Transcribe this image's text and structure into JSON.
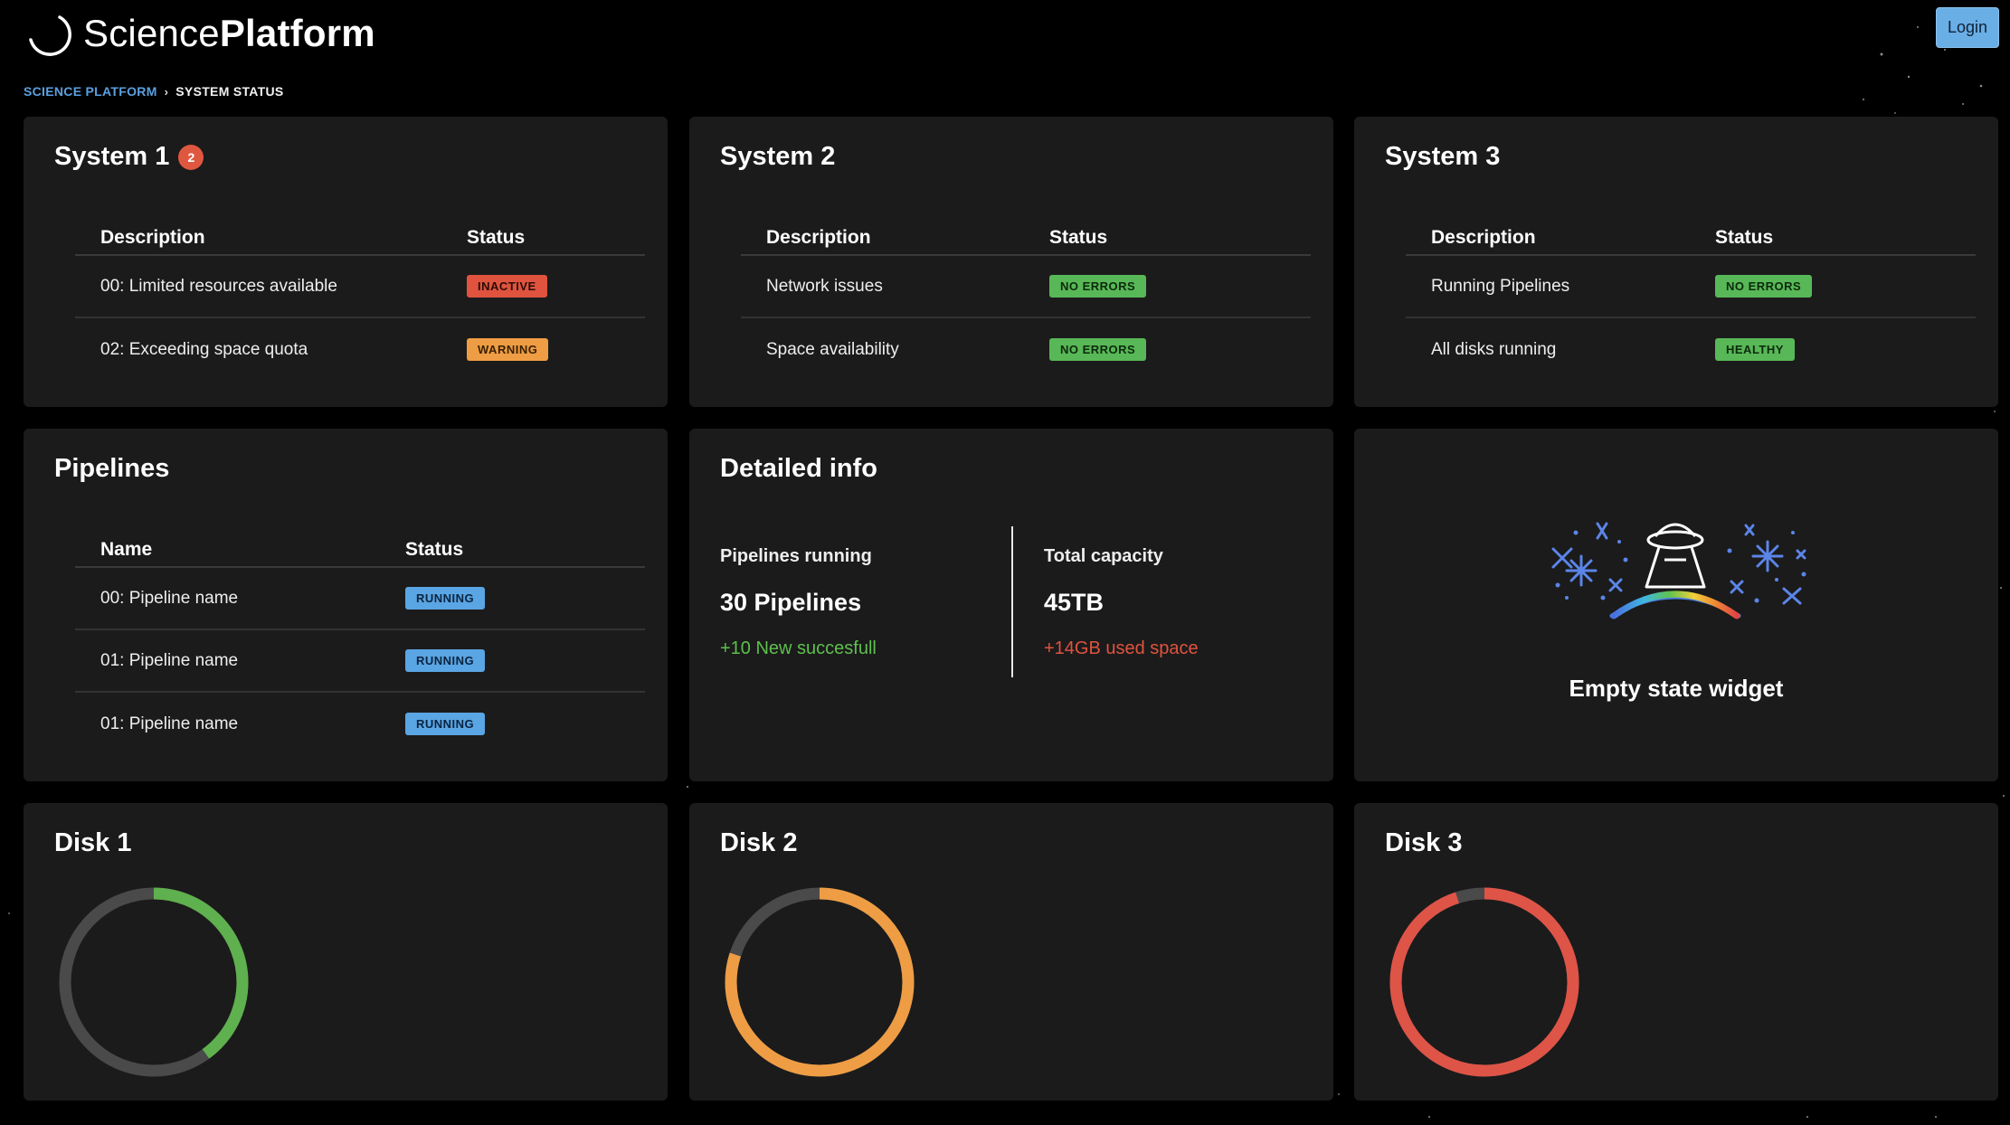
{
  "header": {
    "brand_light": "Science",
    "brand_bold": "Platform",
    "login_label": "Login"
  },
  "breadcrumb": {
    "root": "SCIENCE PLATFORM",
    "separator": "›",
    "current": "SYSTEM STATUS"
  },
  "systems": [
    {
      "title": "System 1",
      "alert_count": "2",
      "col_description": "Description",
      "col_status": "Status",
      "rows": [
        {
          "description": "00: Limited resources available",
          "status": "INACTIVE",
          "status_color": "#e0533f"
        },
        {
          "description": "02: Exceeding space quota",
          "status": "WARNING",
          "status_color": "#ee9d45"
        }
      ]
    },
    {
      "title": "System 2",
      "col_description": "Description",
      "col_status": "Status",
      "rows": [
        {
          "description": "Network issues",
          "status": "NO ERRORS",
          "status_color": "#58b857"
        },
        {
          "description": "Space availability",
          "status": "NO ERRORS",
          "status_color": "#58b857"
        }
      ]
    },
    {
      "title": "System 3",
      "col_description": "Description",
      "col_status": "Status",
      "rows": [
        {
          "description": "Running Pipelines",
          "status": "NO ERRORS",
          "status_color": "#58b857"
        },
        {
          "description": "All disks running",
          "status": "HEALTHY",
          "status_color": "#58b857"
        }
      ]
    }
  ],
  "pipelines": {
    "title": "Pipelines",
    "col_name": "Name",
    "col_status": "Status",
    "rows": [
      {
        "name": "00: Pipeline name",
        "status": "RUNNING"
      },
      {
        "name": "01: Pipeline name",
        "status": "RUNNING"
      },
      {
        "name": "01: Pipeline name",
        "status": "RUNNING"
      }
    ],
    "status_color": "#5aa5e3"
  },
  "detailed_info": {
    "title": "Detailed info",
    "left": {
      "label": "Pipelines running",
      "value": "30 Pipelines",
      "delta": "+10 New succesfull",
      "delta_color": "#5fbf4f"
    },
    "right": {
      "label": "Total capacity",
      "value": "45TB",
      "delta": "+14GB used space",
      "delta_color": "#e0533f"
    }
  },
  "empty_state": {
    "label": "Empty state widget",
    "illustration": "ufo-rainbow-sparkles-icon"
  },
  "disks": [
    {
      "title": "Disk 1",
      "used_fraction": 0.4,
      "color": "#5fb04e",
      "track_color": "#4a4a4a"
    },
    {
      "title": "Disk 2",
      "used_fraction": 0.8,
      "color": "#ee9d45",
      "track_color": "#4a4a4a"
    },
    {
      "title": "Disk 3",
      "used_fraction": 0.95,
      "color": "#de5447",
      "track_color": "#4a4a4a"
    }
  ]
}
